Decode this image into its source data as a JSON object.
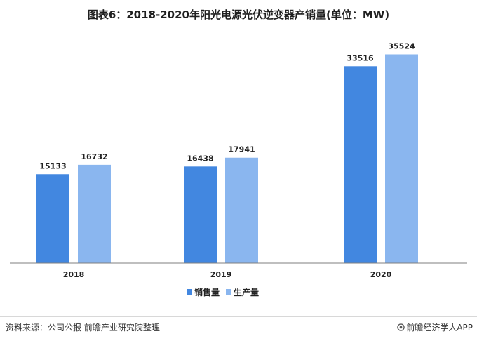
{
  "title": "图表6：2018-2020年阳光电源光伏逆变器产销量(单位：MW)",
  "footer": {
    "source": "资料来源：公司公报 前瞻产业研究院整理",
    "brand": "前瞻经济学人APP"
  },
  "colors": {
    "sales": "#4287e0",
    "production": "#8ab6ef",
    "axis": "#7f7f7f"
  },
  "chart_data": {
    "type": "bar",
    "title": "图表6：2018-2020年阳光电源光伏逆变器产销量(单位：MW)",
    "xlabel": "",
    "ylabel": "",
    "categories": [
      "2018",
      "2019",
      "2020"
    ],
    "series": [
      {
        "name": "销售量",
        "values": [
          15133,
          16438,
          33516
        ]
      },
      {
        "name": "生产量",
        "values": [
          16732,
          17941,
          35524
        ]
      }
    ],
    "ylim": [
      0,
      40000
    ],
    "grid": false,
    "legend": "bottom-center"
  }
}
